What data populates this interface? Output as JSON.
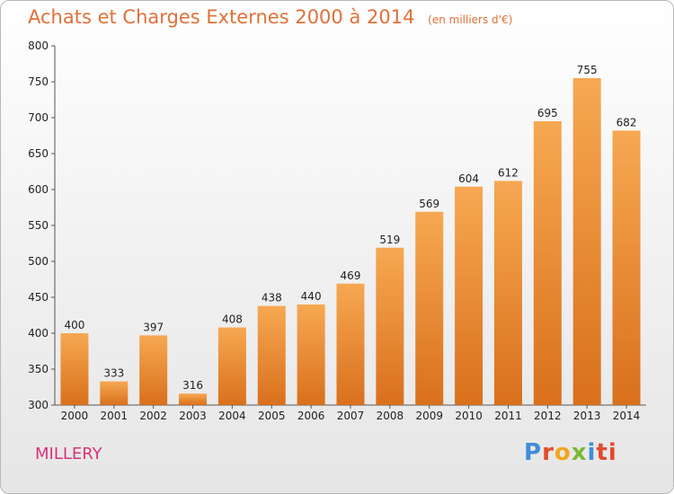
{
  "chart_data": {
    "type": "bar",
    "title": "Achats et Charges Externes 2000 à 2014",
    "subtitle": "(en milliers d'€)",
    "categories": [
      "2000",
      "2001",
      "2002",
      "2003",
      "2004",
      "2005",
      "2006",
      "2007",
      "2008",
      "2009",
      "2010",
      "2011",
      "2012",
      "2013",
      "2014"
    ],
    "values": [
      400,
      333,
      397,
      316,
      408,
      438,
      440,
      469,
      519,
      569,
      604,
      612,
      695,
      755,
      682
    ],
    "ylim": [
      300,
      800
    ],
    "yticks": [
      300,
      350,
      400,
      450,
      500,
      550,
      600,
      650,
      700,
      750,
      800
    ],
    "grid": false,
    "legend": "none",
    "bar_color": "#f29a45"
  },
  "footer": {
    "commune": "MILLERY",
    "logo": [
      "P",
      "r",
      "o",
      "x",
      "i",
      "ti"
    ]
  }
}
